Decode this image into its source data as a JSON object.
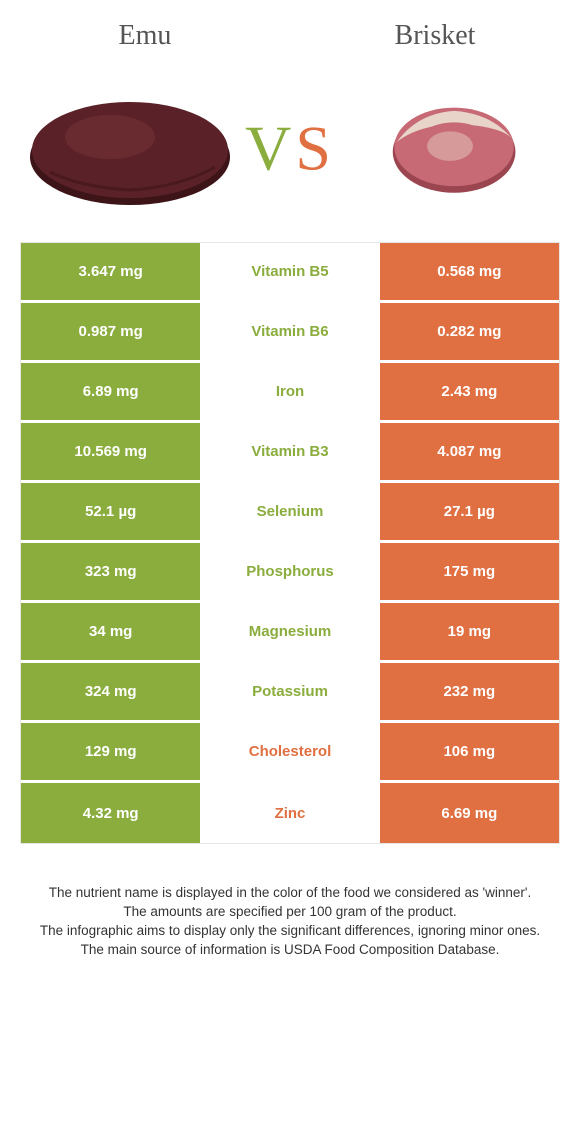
{
  "header": {
    "left_label": "Emu",
    "right_label": "Brisket",
    "vs_v": "V",
    "vs_s": "S"
  },
  "colors": {
    "left_bg": "#8aad3e",
    "right_bg": "#e06f41",
    "mid_bg": "#ffffff",
    "row_gap": "#ffffff",
    "left_text": "#ffffff",
    "right_text": "#ffffff",
    "nutrient_left_assoc": "#8aad3e",
    "nutrient_right_assoc": "#e06f41"
  },
  "images": {
    "left_meat": {
      "main": "#5a2228",
      "shadow": "#3d1418",
      "highlight": "#7a3338"
    },
    "right_meat": {
      "main": "#c86a75",
      "fat": "#e8d4c8",
      "dark": "#9a4550"
    }
  },
  "rows": [
    {
      "left": "3.647 mg",
      "name": "Vitamin B5",
      "right": "0.568 mg",
      "winner": "left"
    },
    {
      "left": "0.987 mg",
      "name": "Vitamin B6",
      "right": "0.282 mg",
      "winner": "left"
    },
    {
      "left": "6.89 mg",
      "name": "Iron",
      "right": "2.43 mg",
      "winner": "left"
    },
    {
      "left": "10.569 mg",
      "name": "Vitamin B3",
      "right": "4.087 mg",
      "winner": "left"
    },
    {
      "left": "52.1 µg",
      "name": "Selenium",
      "right": "27.1 µg",
      "winner": "left"
    },
    {
      "left": "323 mg",
      "name": "Phosphorus",
      "right": "175 mg",
      "winner": "left"
    },
    {
      "left": "34 mg",
      "name": "Magnesium",
      "right": "19 mg",
      "winner": "left"
    },
    {
      "left": "324 mg",
      "name": "Potassium",
      "right": "232 mg",
      "winner": "left"
    },
    {
      "left": "129 mg",
      "name": "Cholesterol",
      "right": "106 mg",
      "winner": "right"
    },
    {
      "left": "4.32 mg",
      "name": "Zinc",
      "right": "6.69 mg",
      "winner": "right"
    }
  ],
  "footer": {
    "line1": "The nutrient name is displayed in the color of the food we considered as 'winner'.",
    "line2": "The amounts are specified per 100 gram of the product.",
    "line3": "The infographic aims to display only the significant differences, ignoring minor ones.",
    "line4": "The main source of information is USDA Food Composition Database."
  }
}
